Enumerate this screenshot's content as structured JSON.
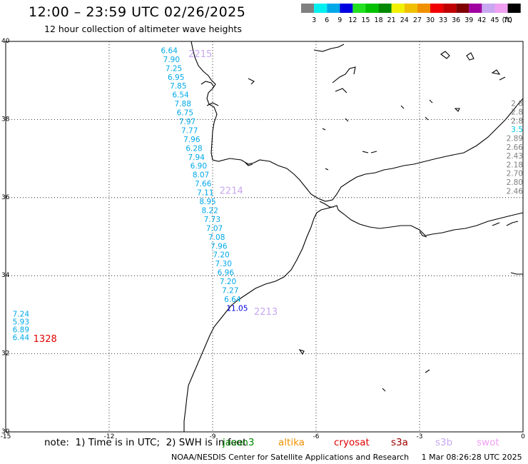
{
  "header": {
    "title": "12:00 – 23:59 UTC 02/26/2025",
    "subtitle": "12 hour collection of altimeter wave heights"
  },
  "legend": {
    "unit": "(ft)",
    "bins": [
      {
        "label": "3",
        "color": "#808080"
      },
      {
        "label": "6",
        "color": "#00f0f0"
      },
      {
        "label": "9",
        "color": "#00a8e8"
      },
      {
        "label": "12",
        "color": "#0000e0"
      },
      {
        "label": "15",
        "color": "#20e020"
      },
      {
        "label": "18",
        "color": "#00c000"
      },
      {
        "label": "21",
        "color": "#008800"
      },
      {
        "label": "24",
        "color": "#f0f000"
      },
      {
        "label": "27",
        "color": "#f0c000"
      },
      {
        "label": "30",
        "color": "#f09000"
      },
      {
        "label": "33",
        "color": "#f00000"
      },
      {
        "label": "36",
        "color": "#c00000"
      },
      {
        "label": "39",
        "color": "#800000"
      },
      {
        "label": "42",
        "color": "#a000a0"
      },
      {
        "label": "45",
        "color": "#c8a8f0"
      },
      {
        "label": "70",
        "color": "#f0a0f0"
      },
      {
        "label": "",
        "color": "#000000"
      }
    ]
  },
  "axes": {
    "lon_ticks": [
      "-15",
      "-12",
      "-9",
      "-6",
      "-3",
      "0"
    ],
    "lat_ticks": [
      "30",
      "32",
      "34",
      "36",
      "38",
      "40"
    ]
  },
  "tracks": [
    {
      "pass": "2215",
      "color": "#00a8e8",
      "label_color": "#c8a8f0",
      "values": [
        "6.64",
        "7.90",
        "7.25",
        "6.95",
        "7.85",
        "6.54",
        "7.88",
        "6.75",
        "7.97",
        "7.77",
        "7.96",
        "6.28",
        "7.94",
        "6.90",
        "8.07",
        "7.66",
        "7.11",
        "8.95",
        "8.22",
        "7.73",
        "7.07",
        "7.08",
        "7.96",
        "7.20",
        "7.30",
        "6.96",
        "7.20",
        "7.27",
        "6.64",
        "11.05"
      ]
    },
    {
      "pass": "2214",
      "label_color": "#c8a8f0"
    },
    {
      "pass": "2213",
      "label_color": "#c8a8f0"
    },
    {
      "pass": "1328",
      "color": "#00a8e8",
      "label_color": "#e00000",
      "values": [
        "7.24",
        "5.93",
        "6.89",
        "6.44"
      ]
    },
    {
      "pass": "",
      "color": "#808080",
      "values": [
        "2.8",
        "2.8",
        "2.8",
        "3.5",
        "2.89",
        "2.66",
        "2.43",
        "2.18",
        "2.70",
        "2.80",
        "2.46"
      ]
    }
  ],
  "note": "note:  1) Time is in UTC;  2) SWH is in feet",
  "satellites": [
    {
      "name": "jason3",
      "color": "#008800"
    },
    {
      "name": "altika",
      "color": "#f09000"
    },
    {
      "name": "cryosat",
      "color": "#e00000"
    },
    {
      "name": "s3a",
      "color": "#a00000"
    },
    {
      "name": "s3b",
      "color": "#c8a8f0"
    },
    {
      "name": "swot",
      "color": "#f0a0f0"
    }
  ],
  "footer": "NOAA/NESDIS Center for Satellite Applications and Research     1 Mar 08:26:28 UTC 2025"
}
